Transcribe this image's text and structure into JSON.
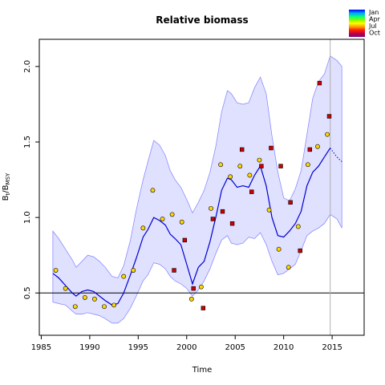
{
  "chart_data": {
    "type": "scatter",
    "title": "Relative biomass",
    "xlabel": "Time",
    "ylabel_main": "B",
    "ylabel_sub1": "t",
    "ylabel_mid": "/B",
    "ylabel_sub2": "MSY",
    "xlim": [
      1984.8,
      2018.3
    ],
    "ylim": [
      0.22,
      2.18
    ],
    "x_ticks": [
      1985,
      1990,
      1995,
      2000,
      2005,
      2010,
      2015
    ],
    "y_ticks": [
      0.5,
      1.0,
      1.5,
      2.0
    ],
    "y_tick_labels": [
      "0.5",
      "1.0",
      "1.5",
      "2.0"
    ],
    "reference_line_y": 0.5,
    "reference_line_x": 2014.8,
    "grid": false,
    "legend": {
      "position": "top-right",
      "entries": [
        "Jan",
        "Apr",
        "Jul",
        "Oct"
      ],
      "gradient": [
        "#0000ff",
        "#00a0ff",
        "#00ff80",
        "#80ff00",
        "#ffff00",
        "#ffa000",
        "#ff2000",
        "#c00040",
        "#800080"
      ]
    },
    "colors": {
      "band_fill": "#e0e0ff",
      "band_edge": "#8080ff",
      "median_line": "#0000d0",
      "obs_yellow": "#ffd700",
      "obs_red": "#d00000"
    },
    "band_years": [
      1986.2,
      1986.8,
      1987.5,
      1988.2,
      1988.6,
      1989.2,
      1989.8,
      1990.4,
      1991.0,
      1991.6,
      1992.3,
      1992.9,
      1993.5,
      1994.2,
      1994.8,
      1995.5,
      1996.0,
      1996.6,
      1997.2,
      1997.8,
      1998.3,
      1998.8,
      1999.4,
      2000.0,
      2000.6,
      2001.2,
      2001.8,
      2002.4,
      2003.0,
      2003.6,
      2004.2,
      2004.6,
      2005.2,
      2005.8,
      2006.4,
      2007.0,
      2007.6,
      2008.2,
      2008.8,
      2009.4,
      2010.0,
      2010.6,
      2011.2,
      2011.8,
      2012.4,
      2013.0,
      2013.6,
      2014.2,
      2014.8,
      2015.5,
      2016.0
    ],
    "band_upper": [
      0.91,
      0.86,
      0.79,
      0.72,
      0.67,
      0.71,
      0.75,
      0.74,
      0.71,
      0.67,
      0.61,
      0.6,
      0.68,
      0.85,
      1.05,
      1.25,
      1.37,
      1.51,
      1.48,
      1.41,
      1.31,
      1.25,
      1.2,
      1.12,
      1.03,
      1.1,
      1.18,
      1.3,
      1.47,
      1.7,
      1.84,
      1.82,
      1.76,
      1.75,
      1.76,
      1.86,
      1.93,
      1.82,
      1.54,
      1.3,
      1.13,
      1.11,
      1.19,
      1.31,
      1.55,
      1.79,
      1.9,
      1.95,
      2.07,
      2.04,
      2.0
    ],
    "band_lower": [
      0.44,
      0.43,
      0.42,
      0.38,
      0.36,
      0.36,
      0.37,
      0.36,
      0.35,
      0.33,
      0.3,
      0.3,
      0.33,
      0.4,
      0.48,
      0.58,
      0.62,
      0.7,
      0.69,
      0.66,
      0.61,
      0.58,
      0.56,
      0.53,
      0.48,
      0.52,
      0.58,
      0.66,
      0.76,
      0.85,
      0.88,
      0.83,
      0.82,
      0.83,
      0.87,
      0.86,
      0.9,
      0.82,
      0.71,
      0.62,
      0.63,
      0.66,
      0.69,
      0.78,
      0.88,
      0.91,
      0.93,
      0.96,
      1.02,
      0.99,
      0.93
    ],
    "median_years": [
      1986.2,
      1986.8,
      1987.5,
      1988.2,
      1988.6,
      1989.2,
      1989.8,
      1990.4,
      1991.0,
      1991.6,
      1992.3,
      1992.9,
      1993.5,
      1994.2,
      1994.8,
      1995.5,
      1996.0,
      1996.6,
      1997.2,
      1997.8,
      1998.3,
      1998.8,
      1999.4,
      2000.0,
      2000.6,
      2001.2,
      2001.8,
      2002.4,
      2003.0,
      2003.6,
      2004.2,
      2004.6,
      2005.2,
      2005.8,
      2006.4,
      2007.0,
      2007.6,
      2008.2,
      2008.8,
      2009.4,
      2010.0,
      2010.6,
      2011.2,
      2011.8,
      2012.4,
      2013.0,
      2013.6,
      2014.2,
      2014.8
    ],
    "median_values": [
      0.63,
      0.6,
      0.55,
      0.5,
      0.48,
      0.51,
      0.52,
      0.51,
      0.48,
      0.45,
      0.42,
      0.43,
      0.5,
      0.62,
      0.73,
      0.87,
      0.92,
      1.0,
      0.98,
      0.95,
      0.89,
      0.86,
      0.82,
      0.69,
      0.56,
      0.67,
      0.71,
      0.84,
      1.0,
      1.18,
      1.26,
      1.25,
      1.2,
      1.21,
      1.2,
      1.28,
      1.34,
      1.21,
      1.0,
      0.88,
      0.87,
      0.91,
      0.96,
      1.04,
      1.21,
      1.3,
      1.34,
      1.4,
      1.46
    ],
    "forecast_years": [
      2014.8,
      2015.5,
      2016.0
    ],
    "forecast_values": [
      1.46,
      1.4,
      1.37
    ],
    "observations": [
      {
        "x": 1986.5,
        "y": 0.65,
        "shape": "circle",
        "color": "yellow"
      },
      {
        "x": 1987.5,
        "y": 0.53,
        "shape": "circle",
        "color": "yellow"
      },
      {
        "x": 1988.5,
        "y": 0.41,
        "shape": "circle",
        "color": "yellow"
      },
      {
        "x": 1989.5,
        "y": 0.47,
        "shape": "circle",
        "color": "yellow"
      },
      {
        "x": 1990.5,
        "y": 0.46,
        "shape": "circle",
        "color": "yellow"
      },
      {
        "x": 1991.5,
        "y": 0.41,
        "shape": "circle",
        "color": "yellow"
      },
      {
        "x": 1992.5,
        "y": 0.42,
        "shape": "circle",
        "color": "yellow"
      },
      {
        "x": 1993.5,
        "y": 0.61,
        "shape": "circle",
        "color": "yellow"
      },
      {
        "x": 1994.5,
        "y": 0.65,
        "shape": "circle",
        "color": "yellow"
      },
      {
        "x": 1995.5,
        "y": 0.93,
        "shape": "circle",
        "color": "yellow"
      },
      {
        "x": 1996.5,
        "y": 1.18,
        "shape": "circle",
        "color": "yellow"
      },
      {
        "x": 1997.5,
        "y": 0.99,
        "shape": "circle",
        "color": "yellow"
      },
      {
        "x": 1998.5,
        "y": 1.02,
        "shape": "circle",
        "color": "yellow"
      },
      {
        "x": 1999.5,
        "y": 0.97,
        "shape": "circle",
        "color": "yellow"
      },
      {
        "x": 2000.5,
        "y": 0.46,
        "shape": "circle",
        "color": "yellow"
      },
      {
        "x": 2001.5,
        "y": 0.54,
        "shape": "circle",
        "color": "yellow"
      },
      {
        "x": 2002.5,
        "y": 1.06,
        "shape": "circle",
        "color": "yellow"
      },
      {
        "x": 2003.5,
        "y": 1.35,
        "shape": "circle",
        "color": "yellow"
      },
      {
        "x": 2004.5,
        "y": 1.27,
        "shape": "circle",
        "color": "yellow"
      },
      {
        "x": 2005.5,
        "y": 1.34,
        "shape": "circle",
        "color": "yellow"
      },
      {
        "x": 2006.5,
        "y": 1.28,
        "shape": "circle",
        "color": "yellow"
      },
      {
        "x": 2007.5,
        "y": 1.38,
        "shape": "circle",
        "color": "yellow"
      },
      {
        "x": 2008.5,
        "y": 1.05,
        "shape": "circle",
        "color": "yellow"
      },
      {
        "x": 2009.5,
        "y": 0.79,
        "shape": "circle",
        "color": "yellow"
      },
      {
        "x": 2010.5,
        "y": 0.67,
        "shape": "circle",
        "color": "yellow"
      },
      {
        "x": 2011.5,
        "y": 0.94,
        "shape": "circle",
        "color": "yellow"
      },
      {
        "x": 2012.5,
        "y": 1.35,
        "shape": "circle",
        "color": "yellow"
      },
      {
        "x": 2013.5,
        "y": 1.47,
        "shape": "circle",
        "color": "yellow"
      },
      {
        "x": 2014.5,
        "y": 1.55,
        "shape": "circle",
        "color": "yellow"
      },
      {
        "x": 1998.7,
        "y": 0.65,
        "shape": "square",
        "color": "red"
      },
      {
        "x": 1999.8,
        "y": 0.85,
        "shape": "square",
        "color": "red"
      },
      {
        "x": 2000.7,
        "y": 0.53,
        "shape": "square",
        "color": "red"
      },
      {
        "x": 2001.7,
        "y": 0.4,
        "shape": "square",
        "color": "red"
      },
      {
        "x": 2002.7,
        "y": 0.99,
        "shape": "square",
        "color": "red"
      },
      {
        "x": 2003.7,
        "y": 1.04,
        "shape": "square",
        "color": "red"
      },
      {
        "x": 2004.7,
        "y": 0.96,
        "shape": "square",
        "color": "red"
      },
      {
        "x": 2005.7,
        "y": 1.45,
        "shape": "square",
        "color": "red"
      },
      {
        "x": 2006.7,
        "y": 1.17,
        "shape": "square",
        "color": "red"
      },
      {
        "x": 2007.7,
        "y": 1.34,
        "shape": "square",
        "color": "red"
      },
      {
        "x": 2008.7,
        "y": 1.46,
        "shape": "square",
        "color": "red"
      },
      {
        "x": 2009.7,
        "y": 1.34,
        "shape": "square",
        "color": "red"
      },
      {
        "x": 2010.7,
        "y": 1.1,
        "shape": "square",
        "color": "red"
      },
      {
        "x": 2011.7,
        "y": 0.78,
        "shape": "square",
        "color": "red"
      },
      {
        "x": 2012.7,
        "y": 1.45,
        "shape": "square",
        "color": "red"
      },
      {
        "x": 2013.7,
        "y": 1.89,
        "shape": "square",
        "color": "red"
      },
      {
        "x": 2014.7,
        "y": 1.67,
        "shape": "square",
        "color": "red"
      }
    ]
  }
}
